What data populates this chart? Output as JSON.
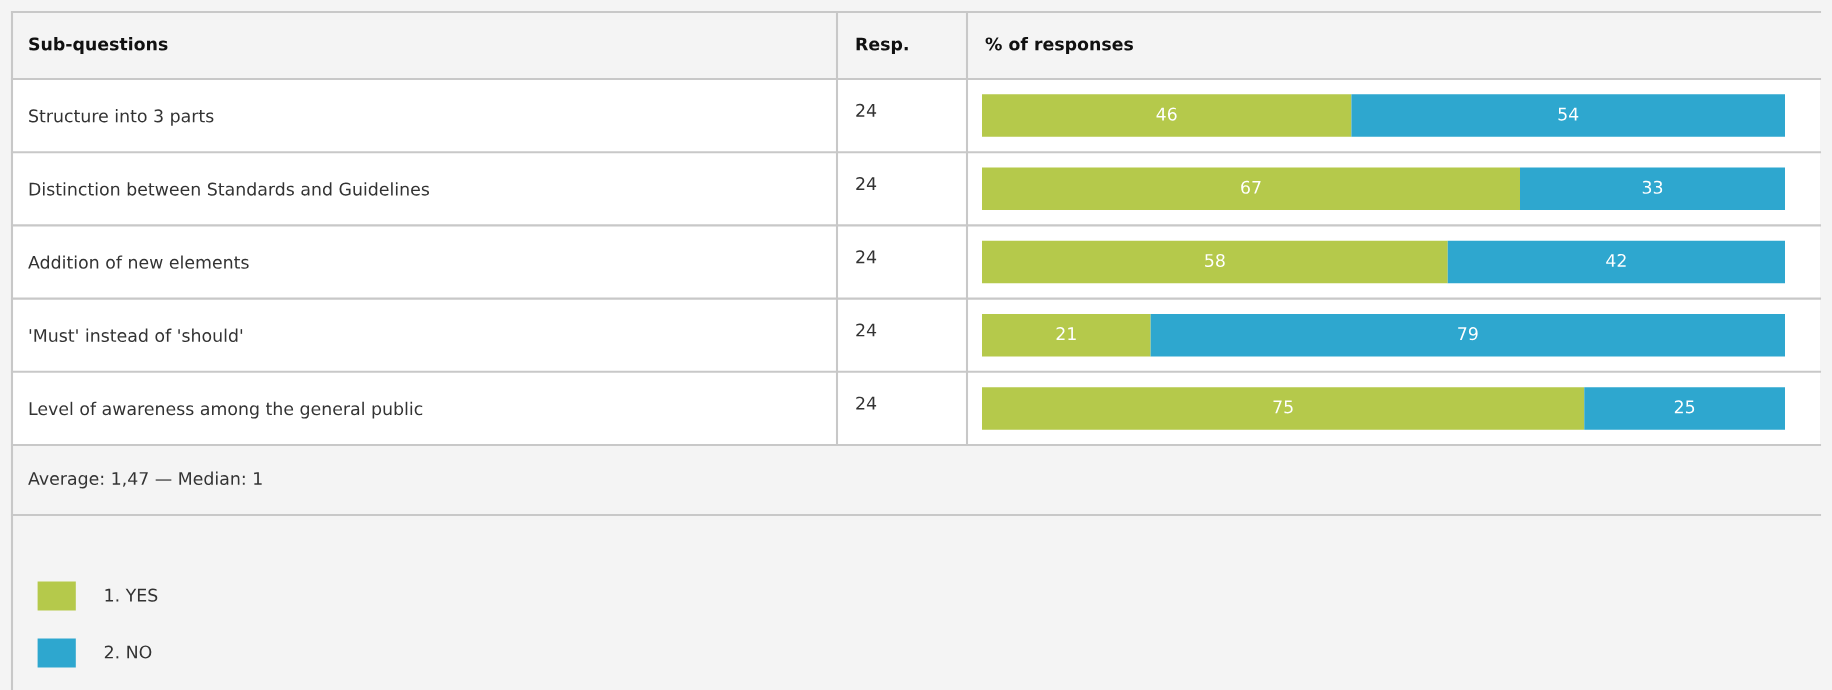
{
  "chart_data": {
    "type": "bar",
    "orientation": "horizontal",
    "stacked": true,
    "categories": [
      "Structure into 3 parts",
      "Distinction between Standards and Guidelines",
      "Addition of new elements",
      "'Must' instead of 'should'",
      "Level of awareness among the general public"
    ],
    "series": [
      {
        "name": "1. YES",
        "color": "#b5c94b",
        "values": [
          46,
          67,
          58,
          21,
          75
        ]
      },
      {
        "name": "2. NO",
        "color": "#2ea7cf",
        "values": [
          54,
          33,
          42,
          79,
          25
        ]
      }
    ],
    "xlim": [
      0,
      100
    ],
    "data_labels": true,
    "tick_labels": "y",
    "grid": false,
    "legend": "bottom left",
    "annotations": [
      "Sub-questions",
      "Resp.",
      "% of responses",
      "24",
      "24",
      "24",
      "24",
      "24",
      "Average: 1,47 — Median: 1"
    ]
  }
}
